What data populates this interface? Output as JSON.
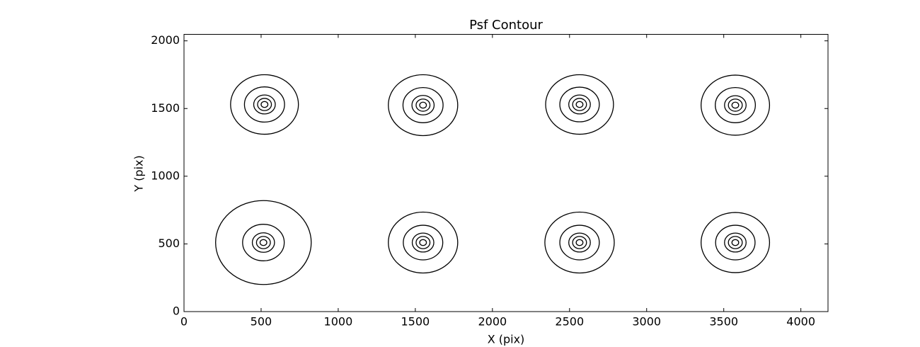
{
  "chart_data": {
    "type": "contour",
    "title": "Psf Contour",
    "x_label": "X (pix)",
    "y_label": "Y (pix)",
    "xlim": [
      0,
      4176
    ],
    "ylim": [
      0,
      2048
    ],
    "xticks": [
      0,
      500,
      1000,
      1500,
      2000,
      2500,
      3000,
      3500,
      4000
    ],
    "yticks": [
      0,
      500,
      1000,
      1500,
      2000
    ],
    "color": "#000000",
    "contours": [
      {
        "x": 522,
        "y": 1530,
        "radii": [
          220,
          130,
          70,
          45,
          22
        ]
      },
      {
        "x": 1550,
        "y": 1525,
        "radii": [
          225,
          130,
          72,
          45,
          22
        ]
      },
      {
        "x": 2565,
        "y": 1530,
        "radii": [
          220,
          128,
          70,
          45,
          22
        ]
      },
      {
        "x": 3575,
        "y": 1525,
        "radii": [
          222,
          130,
          70,
          45,
          22
        ]
      },
      {
        "x": 515,
        "y": 510,
        "radii": [
          310,
          135,
          72,
          45,
          22
        ]
      },
      {
        "x": 1550,
        "y": 510,
        "radii": [
          225,
          128,
          70,
          45,
          22
        ]
      },
      {
        "x": 2565,
        "y": 510,
        "radii": [
          225,
          128,
          70,
          45,
          22
        ]
      },
      {
        "x": 3575,
        "y": 510,
        "radii": [
          222,
          128,
          70,
          45,
          22
        ]
      }
    ]
  }
}
